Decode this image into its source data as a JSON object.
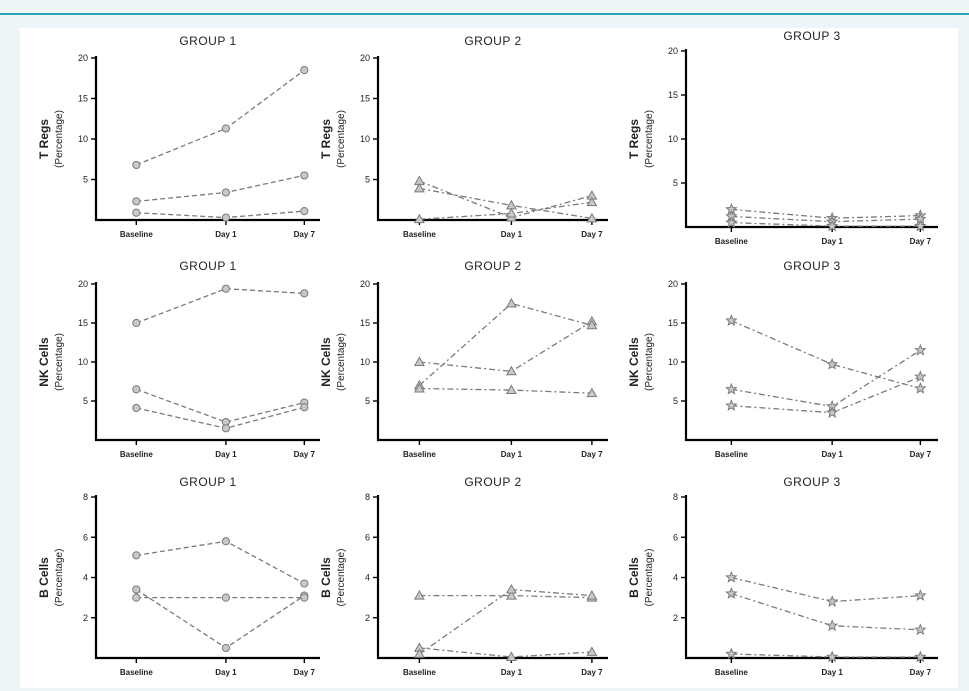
{
  "chart_data": [
    {
      "type": "line",
      "title": "GROUP 1",
      "ylabel": "T Regs",
      "ylabel2": "(Percentage)",
      "categories": [
        "Baseline",
        "Day 1",
        "Day 7"
      ],
      "yticks": [
        5,
        10,
        15,
        20
      ],
      "ylim": [
        0,
        20
      ],
      "marker": "circle",
      "dash": "5,3",
      "series": [
        {
          "values": [
            6.8,
            11.3,
            18.5
          ]
        },
        {
          "values": [
            2.3,
            3.4,
            5.5
          ]
        },
        {
          "values": [
            0.9,
            0.3,
            1.1
          ]
        }
      ]
    },
    {
      "type": "line",
      "title": "GROUP 2",
      "ylabel": "T Regs",
      "ylabel2": "(Percentage)",
      "categories": [
        "Baseline",
        "Day 1",
        "Day 7"
      ],
      "yticks": [
        5,
        10,
        15,
        20
      ],
      "ylim": [
        0,
        20
      ],
      "marker": "triangle",
      "dash": "6,3,2,3",
      "series": [
        {
          "values": [
            4.8,
            0.3,
            3.0
          ]
        },
        {
          "values": [
            3.9,
            1.8,
            0.2
          ]
        },
        {
          "values": [
            0.1,
            0.8,
            2.2
          ]
        }
      ]
    },
    {
      "type": "line",
      "title": "GROUP 3",
      "ylabel": "T Regs",
      "ylabel2": "(Percentage)",
      "categories": [
        "Baseline",
        "Day 1",
        "Day 7"
      ],
      "yticks": [
        5,
        10,
        15,
        20
      ],
      "ylim": [
        0,
        20
      ],
      "marker": "star",
      "dash": "6,3,2,3",
      "series": [
        {
          "values": [
            2.0,
            1.0,
            1.3
          ]
        },
        {
          "values": [
            1.2,
            0.6,
            0.9
          ]
        },
        {
          "values": [
            0.5,
            0.1,
            0.1
          ]
        }
      ]
    },
    {
      "type": "line",
      "title": "GROUP 1",
      "ylabel": "NK Cells",
      "ylabel2": "(Percentage)",
      "categories": [
        "Baseline",
        "Day 1",
        "Day 7"
      ],
      "yticks": [
        5,
        10,
        15,
        20
      ],
      "ylim": [
        0,
        20
      ],
      "marker": "circle",
      "dash": "5,3",
      "series": [
        {
          "values": [
            15.0,
            19.4,
            18.8
          ]
        },
        {
          "values": [
            6.5,
            2.3,
            4.8
          ]
        },
        {
          "values": [
            4.1,
            1.5,
            4.2
          ]
        }
      ]
    },
    {
      "type": "line",
      "title": "GROUP 2",
      "ylabel": "NK Cells",
      "ylabel2": "(Percentage)",
      "categories": [
        "Baseline",
        "Day 1",
        "Day 7"
      ],
      "yticks": [
        5,
        10,
        15,
        20
      ],
      "ylim": [
        0,
        20
      ],
      "marker": "triangle",
      "dash": "6,3,2,3",
      "series": [
        {
          "values": [
            10.0,
            8.8,
            15.2
          ]
        },
        {
          "values": [
            7.0,
            17.5,
            14.7
          ]
        },
        {
          "values": [
            6.6,
            6.4,
            6.0
          ]
        }
      ]
    },
    {
      "type": "line",
      "title": "GROUP 3",
      "ylabel": "NK Cells",
      "ylabel2": "(Percentage)",
      "categories": [
        "Baseline",
        "Day 1",
        "Day 7"
      ],
      "yticks": [
        5,
        10,
        15,
        20
      ],
      "ylim": [
        0,
        20
      ],
      "marker": "star",
      "dash": "6,3,2,3",
      "series": [
        {
          "values": [
            15.3,
            9.7,
            6.6
          ]
        },
        {
          "values": [
            6.5,
            4.3,
            11.5
          ]
        },
        {
          "values": [
            4.4,
            3.5,
            8.1
          ]
        }
      ]
    },
    {
      "type": "line",
      "title": "GROUP 1",
      "ylabel": "B Cells",
      "ylabel2": "(Percentage)",
      "categories": [
        "Baseline",
        "Day 1",
        "Day 7"
      ],
      "yticks": [
        2,
        4,
        6,
        8
      ],
      "ylim": [
        0,
        8
      ],
      "marker": "circle",
      "dash": "5,3",
      "series": [
        {
          "values": [
            5.1,
            5.8,
            3.7
          ]
        },
        {
          "values": [
            3.4,
            0.5,
            3.1
          ]
        },
        {
          "values": [
            3.0,
            3.0,
            3.0
          ]
        }
      ]
    },
    {
      "type": "line",
      "title": "GROUP 2",
      "ylabel": "B Cells",
      "ylabel2": "(Percentage)",
      "categories": [
        "Baseline",
        "Day 1",
        "Day 7"
      ],
      "yticks": [
        2,
        4,
        6,
        8
      ],
      "ylim": [
        0,
        8
      ],
      "marker": "triangle",
      "dash": "6,3,2,3",
      "series": [
        {
          "values": [
            3.1,
            3.1,
            3.0
          ]
        },
        {
          "values": [
            0.5,
            0.05,
            0.3
          ]
        },
        {
          "values": [
            0.2,
            3.4,
            3.1
          ]
        }
      ]
    },
    {
      "type": "line",
      "title": "GROUP 3",
      "ylabel": "B Cells",
      "ylabel2": "(Percentage)",
      "categories": [
        "Baseline",
        "Day 1",
        "Day 7"
      ],
      "yticks": [
        2,
        4,
        6,
        8
      ],
      "ylim": [
        0,
        8
      ],
      "marker": "star",
      "dash": "6,3,2,3",
      "series": [
        {
          "values": [
            4.0,
            2.8,
            3.1
          ]
        },
        {
          "values": [
            3.2,
            1.6,
            1.4
          ]
        },
        {
          "values": [
            0.2,
            0.05,
            0.05
          ]
        }
      ]
    }
  ],
  "colors": {
    "line": "#7a7a7a",
    "marker_fill": "#c8c8c8",
    "marker_stroke": "#7a7a7a",
    "accent_rule": "#2aa3b7"
  }
}
